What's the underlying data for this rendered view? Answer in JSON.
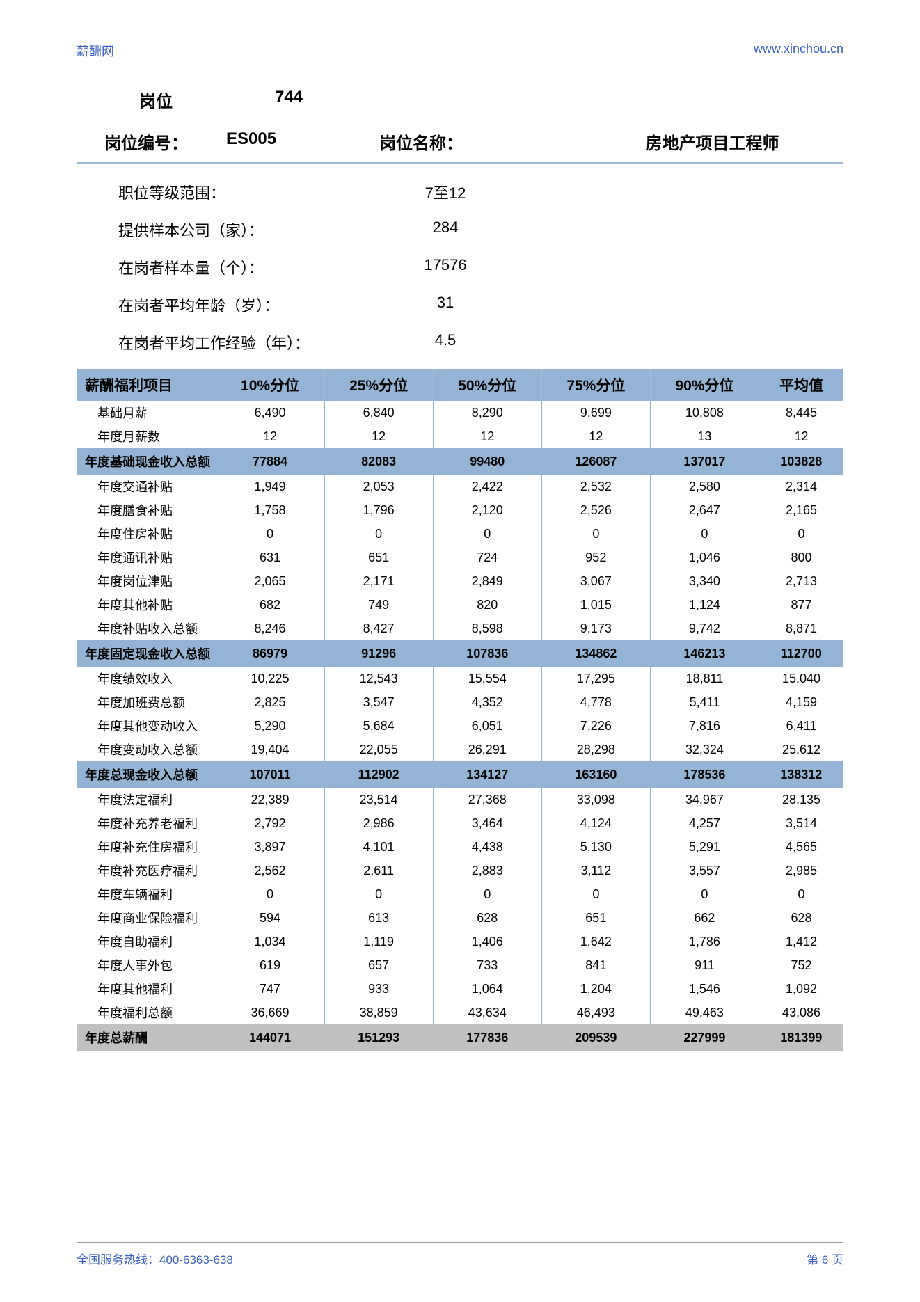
{
  "header": {
    "site_name": "薪酬网",
    "site_url": "www.xinchou.cn"
  },
  "position": {
    "position_label": "岗位",
    "position_num": "744",
    "code_label": "岗位编号：",
    "code_value": "ES005",
    "name_label": "岗位名称：",
    "name_value": "房地产项目工程师"
  },
  "meta": [
    {
      "label": "职位等级范围：",
      "value": "7至12"
    },
    {
      "label": "提供样本公司（家）：",
      "value": "284"
    },
    {
      "label": "在岗者样本量（个）：",
      "value": "17576"
    },
    {
      "label": "在岗者平均年龄（岁）：",
      "value": "31"
    },
    {
      "label": "在岗者平均工作经验（年）：",
      "value": "4.5"
    }
  ],
  "table": {
    "header_row": [
      "薪酬福利项目",
      "10%分位",
      "25%分位",
      "50%分位",
      "75%分位",
      "90%分位",
      "平均值"
    ],
    "header_bg": "#94b4d6",
    "subtotal_bg": "#94b4d6",
    "grandtotal_bg": "#c0c0c0",
    "rows": [
      {
        "type": "normal",
        "cells": [
          "基础月薪",
          "6,490",
          "6,840",
          "8,290",
          "9,699",
          "10,808",
          "8,445"
        ]
      },
      {
        "type": "normal",
        "cells": [
          "年度月薪数",
          "12",
          "12",
          "12",
          "12",
          "13",
          "12"
        ]
      },
      {
        "type": "subtotal",
        "cells": [
          "年度基础现金收入总额",
          "77884",
          "82083",
          "99480",
          "126087",
          "137017",
          "103828"
        ]
      },
      {
        "type": "normal",
        "cells": [
          "年度交通补贴",
          "1,949",
          "2,053",
          "2,422",
          "2,532",
          "2,580",
          "2,314"
        ]
      },
      {
        "type": "normal",
        "cells": [
          "年度膳食补贴",
          "1,758",
          "1,796",
          "2,120",
          "2,526",
          "2,647",
          "2,165"
        ]
      },
      {
        "type": "normal",
        "cells": [
          "年度住房补贴",
          "0",
          "0",
          "0",
          "0",
          "0",
          "0"
        ]
      },
      {
        "type": "normal",
        "cells": [
          "年度通讯补贴",
          "631",
          "651",
          "724",
          "952",
          "1,046",
          "800"
        ]
      },
      {
        "type": "normal",
        "cells": [
          "年度岗位津贴",
          "2,065",
          "2,171",
          "2,849",
          "3,067",
          "3,340",
          "2,713"
        ]
      },
      {
        "type": "normal",
        "cells": [
          "年度其他补贴",
          "682",
          "749",
          "820",
          "1,015",
          "1,124",
          "877"
        ]
      },
      {
        "type": "normal",
        "cells": [
          "年度补贴收入总额",
          "8,246",
          "8,427",
          "8,598",
          "9,173",
          "9,742",
          "8,871"
        ]
      },
      {
        "type": "subtotal",
        "cells": [
          "年度固定现金收入总额",
          "86979",
          "91296",
          "107836",
          "134862",
          "146213",
          "112700"
        ]
      },
      {
        "type": "normal",
        "cells": [
          "年度绩效收入",
          "10,225",
          "12,543",
          "15,554",
          "17,295",
          "18,811",
          "15,040"
        ]
      },
      {
        "type": "normal",
        "cells": [
          "年度加班费总额",
          "2,825",
          "3,547",
          "4,352",
          "4,778",
          "5,411",
          "4,159"
        ]
      },
      {
        "type": "normal",
        "cells": [
          "年度其他变动收入",
          "5,290",
          "5,684",
          "6,051",
          "7,226",
          "7,816",
          "6,411"
        ]
      },
      {
        "type": "normal",
        "cells": [
          "年度变动收入总额",
          "19,404",
          "22,055",
          "26,291",
          "28,298",
          "32,324",
          "25,612"
        ]
      },
      {
        "type": "subtotal",
        "cells": [
          "年度总现金收入总额",
          "107011",
          "112902",
          "134127",
          "163160",
          "178536",
          "138312"
        ]
      },
      {
        "type": "normal",
        "cells": [
          "年度法定福利",
          "22,389",
          "23,514",
          "27,368",
          "33,098",
          "34,967",
          "28,135"
        ]
      },
      {
        "type": "normal",
        "cells": [
          "年度补充养老福利",
          "2,792",
          "2,986",
          "3,464",
          "4,124",
          "4,257",
          "3,514"
        ]
      },
      {
        "type": "normal",
        "cells": [
          "年度补充住房福利",
          "3,897",
          "4,101",
          "4,438",
          "5,130",
          "5,291",
          "4,565"
        ]
      },
      {
        "type": "normal",
        "cells": [
          "年度补充医疗福利",
          "2,562",
          "2,611",
          "2,883",
          "3,112",
          "3,557",
          "2,985"
        ]
      },
      {
        "type": "normal",
        "cells": [
          "年度车辆福利",
          "0",
          "0",
          "0",
          "0",
          "0",
          "0"
        ]
      },
      {
        "type": "normal",
        "cells": [
          "年度商业保险福利",
          "594",
          "613",
          "628",
          "651",
          "662",
          "628"
        ]
      },
      {
        "type": "normal",
        "cells": [
          "年度自助福利",
          "1,034",
          "1,119",
          "1,406",
          "1,642",
          "1,786",
          "1,412"
        ]
      },
      {
        "type": "normal",
        "cells": [
          "年度人事外包",
          "619",
          "657",
          "733",
          "841",
          "911",
          "752"
        ]
      },
      {
        "type": "normal",
        "cells": [
          "年度其他福利",
          "747",
          "933",
          "1,064",
          "1,204",
          "1,546",
          "1,092"
        ]
      },
      {
        "type": "normal",
        "cells": [
          "年度福利总额",
          "36,669",
          "38,859",
          "43,634",
          "46,493",
          "49,463",
          "43,086"
        ]
      },
      {
        "type": "grandtotal",
        "cells": [
          "年度总薪酬",
          "144071",
          "151293",
          "177836",
          "209539",
          "227999",
          "181399"
        ]
      }
    ]
  },
  "footer": {
    "hotline": "全国服务热线：400-6363-638",
    "page": "第 6 页"
  }
}
